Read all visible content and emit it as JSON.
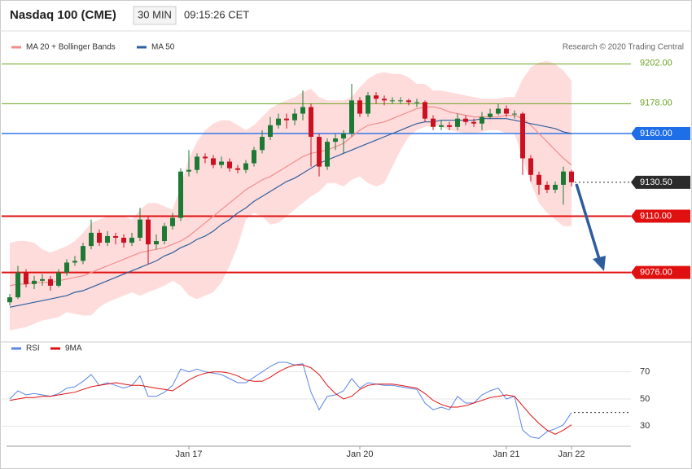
{
  "chart_data": [
    {
      "type": "candlestick",
      "title": "Nasdaq 100 (CME)",
      "interval": "30 MIN",
      "time": "09:15:26 CET",
      "credit": "Research © 2020 Trading Central",
      "xlim": [
        -1,
        76
      ],
      "ylim": [
        9034,
        9221
      ],
      "up_color": "#1d7a35",
      "down_color": "#cc1020",
      "open": [
        9058,
        9061,
        9076,
        9069,
        9071,
        9072,
        9068,
        9076,
        9082,
        9083,
        9092,
        9100,
        9094,
        9098,
        9097,
        9094,
        9097,
        9108,
        9093,
        9095,
        9104,
        9109,
        9137,
        9138,
        9146,
        9145,
        9141,
        9143,
        9139,
        9138,
        9142,
        9150,
        9158,
        9165,
        9169,
        9168,
        9172,
        9176,
        9158,
        9140,
        9155,
        9157,
        9160,
        9180,
        9172,
        9183,
        9181,
        9180,
        9180,
        9180,
        9179,
        9179,
        9169,
        9164,
        9165,
        9164,
        9169,
        9167,
        9166,
        9170,
        9172,
        9175,
        9172,
        9172,
        9145,
        9135,
        9129,
        9126,
        9129,
        9137
      ],
      "high": [
        9063,
        9080,
        9078,
        9074,
        9075,
        9074,
        9078,
        9084,
        9086,
        9094,
        9108,
        9102,
        9101,
        9100,
        9099,
        9100,
        9115,
        9110,
        9099,
        9106,
        9112,
        9139,
        9150,
        9148,
        9148,
        9147,
        9146,
        9145,
        9141,
        9144,
        9152,
        9162,
        9170,
        9172,
        9172,
        9175,
        9186,
        9178,
        9160,
        9157,
        9160,
        9162,
        9190,
        9182,
        9185,
        9185,
        9183,
        9182,
        9182,
        9181,
        9181,
        9180,
        9171,
        9168,
        9167,
        9172,
        9171,
        9169,
        9173,
        9175,
        9178,
        9177,
        9174,
        9173,
        9147,
        9137,
        9131,
        9131,
        9140,
        9138
      ],
      "low": [
        9056,
        9060,
        9067,
        9066,
        9068,
        9065,
        9067,
        9074,
        9080,
        9081,
        9090,
        9092,
        9092,
        9093,
        9091,
        9092,
        9095,
        9081,
        9090,
        9093,
        9102,
        9107,
        9134,
        9136,
        9142,
        9139,
        9139,
        9137,
        9136,
        9136,
        9140,
        9148,
        9156,
        9163,
        9163,
        9165,
        9168,
        9140,
        9134,
        9138,
        9150,
        9148,
        9158,
        9170,
        9170,
        9178,
        9177,
        9178,
        9178,
        9177,
        9176,
        9167,
        9162,
        9162,
        9162,
        9162,
        9165,
        9164,
        9162,
        9169,
        9171,
        9170,
        9169,
        9135,
        9131,
        9123,
        9124,
        9124,
        9117,
        9128
      ],
      "close": [
        9061,
        9076,
        9069,
        9071,
        9072,
        9068,
        9076,
        9082,
        9083,
        9092,
        9100,
        9094,
        9098,
        9097,
        9094,
        9097,
        9108,
        9093,
        9095,
        9104,
        9109,
        9137,
        9138,
        9146,
        9145,
        9141,
        9143,
        9139,
        9138,
        9142,
        9150,
        9158,
        9165,
        9169,
        9168,
        9172,
        9176,
        9158,
        9140,
        9155,
        9157,
        9160,
        9180,
        9172,
        9183,
        9181,
        9180,
        9180,
        9180,
        9179,
        9179,
        9169,
        9164,
        9165,
        9164,
        9169,
        9167,
        9166,
        9170,
        9172,
        9175,
        9172,
        9172,
        9145,
        9135,
        9129,
        9126,
        9129,
        9137,
        9130.5
      ],
      "series": [
        {
          "name": "MA 20 + Bollinger Bands",
          "color": "#f08c8c",
          "band_color": "#ffdcdc",
          "values": [
            9068,
            9069,
            9069,
            9070,
            9070,
            9070,
            9071,
            9072,
            9073,
            9074,
            9076,
            9078,
            9080,
            9082,
            9084,
            9086,
            9088,
            9089,
            9090,
            9091,
            9093,
            9095,
            9098,
            9102,
            9106,
            9110,
            9114,
            9118,
            9122,
            9126,
            9129,
            9132,
            9134,
            9137,
            9140,
            9143,
            9146,
            9148,
            9149,
            9150,
            9152,
            9154,
            9158,
            9162,
            9165,
            9166,
            9167,
            9169,
            9171,
            9173,
            9175,
            9176,
            9176,
            9175,
            9173,
            9172,
            9171,
            9170,
            9170,
            9170,
            9170,
            9171,
            9171,
            9169,
            9165,
            9160,
            9155,
            9150,
            9145,
            9141
          ],
          "upper": [
            9094,
            9095,
            9095,
            9094,
            9090,
            9088,
            9090,
            9092,
            9095,
            9100,
            9106,
            9108,
            9110,
            9110,
            9110,
            9108,
            9114,
            9118,
            9118,
            9116,
            9114,
            9128,
            9145,
            9155,
            9162,
            9166,
            9168,
            9168,
            9165,
            9162,
            9165,
            9170,
            9175,
            9178,
            9180,
            9182,
            9185,
            9187,
            9182,
            9180,
            9180,
            9180,
            9182,
            9188,
            9193,
            9196,
            9197,
            9196,
            9196,
            9194,
            9190,
            9190,
            9186,
            9186,
            9185,
            9184,
            9183,
            9182,
            9181,
            9181,
            9181,
            9182,
            9182,
            9193,
            9200,
            9203,
            9204,
            9202,
            9198,
            9192
          ],
          "lower": [
            9041,
            9042,
            9043,
            9045,
            9047,
            9048,
            9049,
            9052,
            9051,
            9050,
            9050,
            9055,
            9058,
            9060,
            9062,
            9064,
            9062,
            9064,
            9066,
            9068,
            9071,
            9068,
            9062,
            9060,
            9062,
            9064,
            9070,
            9080,
            9092,
            9108,
            9112,
            9110,
            9105,
            9106,
            9110,
            9114,
            9118,
            9122,
            9125,
            9130,
            9130,
            9128,
            9132,
            9134,
            9130,
            9128,
            9130,
            9140,
            9150,
            9158,
            9162,
            9164,
            9165,
            9164,
            9162,
            9161,
            9160,
            9160,
            9161,
            9162,
            9162,
            9160,
            9160,
            9145,
            9130,
            9118,
            9112,
            9108,
            9104,
            9104
          ]
        },
        {
          "name": "MA 50",
          "color": "#2c5f9e",
          "values": [
            9055,
            9056,
            9057,
            9058,
            9059,
            9060,
            9061,
            9062,
            9064,
            9065,
            9067,
            9069,
            9071,
            9073,
            9075,
            9077,
            9079,
            9081,
            9083,
            9086,
            9088,
            9091,
            9093,
            9096,
            9098,
            9101,
            9105,
            9108,
            9112,
            9115,
            9119,
            9122,
            9125,
            9128,
            9131,
            9133,
            9136,
            9139,
            9142,
            9144,
            9146,
            9148,
            9150,
            9152,
            9154,
            9156,
            9158,
            9160,
            9162,
            9164,
            9166,
            9167,
            9167,
            9168,
            9168,
            9168,
            9168,
            9168,
            9169,
            9169,
            9169,
            9169,
            9168,
            9167,
            9166,
            9165,
            9164,
            9163,
            9161,
            9160
          ]
        }
      ],
      "levels": [
        {
          "value": 9202,
          "label": "9202.00",
          "color": "#6aa320",
          "kind": "target"
        },
        {
          "value": 9178,
          "label": "9178.00",
          "color": "#6aa320",
          "kind": "target"
        },
        {
          "value": 9160,
          "label": "9160.00",
          "color": "#1e6ee8",
          "kind": "ma"
        },
        {
          "value": 9130.5,
          "label": "9130.50",
          "color": "#2b2b2b",
          "kind": "price"
        },
        {
          "value": 9110,
          "label": "9110.00",
          "color": "#e01010",
          "kind": "support"
        },
        {
          "value": 9076,
          "label": "9076.00",
          "color": "#e01010",
          "kind": "support"
        }
      ]
    },
    {
      "type": "line",
      "xlim": [
        -1,
        76
      ],
      "ylim": [
        17,
        80
      ],
      "yticks": [
        30,
        50,
        70
      ],
      "grid": true,
      "xticks": [
        {
          "value": 22,
          "label": "Jan 17"
        },
        {
          "value": 43,
          "label": "Jan 20"
        },
        {
          "value": 61,
          "label": "Jan 21"
        },
        {
          "value": 69,
          "label": "Jan 22"
        }
      ],
      "series": [
        {
          "name": "RSI",
          "color": "#5b86e5",
          "values": [
            50,
            56,
            53,
            54,
            53,
            52,
            54,
            58,
            59,
            63,
            68,
            60,
            62,
            60,
            58,
            60,
            67,
            52,
            52,
            55,
            60,
            72,
            70,
            72,
            70,
            69,
            68,
            65,
            62,
            62,
            66,
            70,
            74,
            77,
            77,
            75,
            76,
            55,
            42,
            52,
            53,
            56,
            65,
            58,
            62,
            61,
            60,
            60,
            59,
            58,
            57,
            47,
            42,
            44,
            42,
            52,
            47,
            47,
            53,
            56,
            58,
            50,
            52,
            27,
            22,
            21,
            26,
            28,
            31,
            40
          ]
        },
        {
          "name": "9MA",
          "color": "#e01010",
          "values": [
            49,
            50,
            51,
            51,
            52,
            52,
            53,
            54,
            55,
            57,
            59,
            60,
            61,
            62,
            61,
            60,
            60,
            59,
            58,
            57,
            56,
            60,
            64,
            67,
            69,
            70,
            70,
            69,
            67,
            64,
            63,
            63,
            66,
            70,
            73,
            75,
            75,
            73,
            68,
            60,
            54,
            50,
            52,
            57,
            60,
            61,
            61,
            61,
            60,
            59,
            58,
            54,
            49,
            46,
            44,
            44,
            45,
            47,
            49,
            51,
            52,
            53,
            52,
            45,
            38,
            32,
            27,
            24,
            27,
            31
          ]
        }
      ]
    }
  ]
}
